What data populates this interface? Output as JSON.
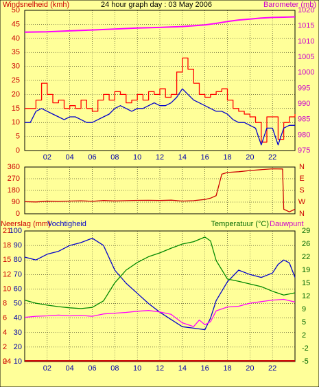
{
  "colors": {
    "background": "#ffff99",
    "frame": "#000000",
    "grid": "#000000",
    "label_red": "#cc0000",
    "label_magenta": "#cc00cc",
    "label_green": "#006600",
    "tick_blue": "#0000aa"
  },
  "chart_data": [
    {
      "type": "line",
      "title": "24 hour graph day : 03 May 2006",
      "ylabel_left": "Windsnelheid (kmh)",
      "ylabel_right": "Barometer (mb)",
      "x_ticks": [
        "02",
        "04",
        "06",
        "08",
        "10",
        "12",
        "14",
        "16",
        "18",
        "20",
        "22"
      ],
      "x_range_hours": [
        0,
        24
      ],
      "ylim_left": [
        0,
        50
      ],
      "y_ticks_left": [
        "0",
        "5",
        "10",
        "15",
        "20",
        "25",
        "30",
        "35",
        "40",
        "45",
        "50"
      ],
      "ylim_right": [
        975,
        1020
      ],
      "y_ticks_right": [
        "975",
        "980",
        "985",
        "990",
        "995",
        "1000",
        "1005",
        "1010",
        "1015",
        "1020"
      ],
      "grid": true,
      "series": [
        {
          "axis": "left",
          "style": "step",
          "color": "#ff0000",
          "x": [
            0,
            0.5,
            1,
            1.5,
            2,
            2.5,
            3,
            3.5,
            4,
            4.5,
            5,
            5.5,
            6,
            6.5,
            7,
            7.5,
            8,
            8.5,
            9,
            9.5,
            10,
            10.5,
            11,
            11.5,
            12,
            12.5,
            13,
            13.5,
            14,
            14.5,
            15,
            15.5,
            16,
            16.5,
            17,
            17.5,
            18,
            18.5,
            19,
            19.5,
            20,
            20.5,
            21,
            21.5,
            22,
            22.5,
            23,
            23.5,
            24
          ],
          "values": [
            15,
            15,
            18,
            24,
            20,
            17,
            18,
            15,
            16,
            15,
            18,
            15,
            14,
            18,
            20,
            18,
            21,
            20,
            17,
            18,
            20,
            18,
            21,
            20,
            22,
            19,
            20,
            28,
            33,
            29,
            24,
            20,
            19,
            20,
            21,
            22,
            18,
            15,
            14,
            13,
            12,
            10,
            3,
            12,
            12,
            4,
            10,
            12,
            13
          ]
        },
        {
          "axis": "left",
          "color": "#0000cc",
          "x": [
            0,
            0.5,
            1,
            1.5,
            2,
            2.5,
            3,
            3.5,
            4,
            4.5,
            5,
            5.5,
            6,
            6.5,
            7,
            7.5,
            8,
            8.5,
            9,
            9.5,
            10,
            10.5,
            11,
            11.5,
            12,
            12.5,
            13,
            13.5,
            14,
            14.5,
            15,
            15.5,
            16,
            16.5,
            17,
            17.5,
            18,
            18.5,
            19,
            19.5,
            20,
            20.5,
            21,
            21.5,
            22,
            22.5,
            23,
            23.5,
            24
          ],
          "values": [
            10,
            10,
            14,
            15,
            14,
            13,
            12,
            11,
            12,
            12,
            11,
            10,
            10,
            11,
            12,
            13,
            15,
            16,
            15,
            14,
            15,
            15,
            16,
            17,
            16,
            16,
            17,
            19,
            22,
            20,
            18,
            17,
            16,
            15,
            14,
            14,
            13,
            11,
            10,
            10,
            9,
            8,
            2,
            8,
            8,
            2,
            8,
            9,
            9
          ]
        },
        {
          "axis": "right",
          "color": "#ff00ff",
          "x": [
            0,
            2,
            4,
            6,
            8,
            10,
            12,
            14,
            16,
            17,
            18,
            19,
            20,
            21,
            22,
            23,
            24
          ],
          "values": [
            1013.0,
            1013.1,
            1013.4,
            1013.7,
            1014.0,
            1014.3,
            1014.5,
            1014.8,
            1015.3,
            1015.8,
            1016.4,
            1016.9,
            1017.2,
            1017.5,
            1017.7,
            1017.8,
            1017.9
          ]
        }
      ]
    },
    {
      "type": "line",
      "ylim_left": [
        0,
        360
      ],
      "y_ticks_left": [
        "0",
        "90",
        "180",
        "270",
        "360"
      ],
      "y_ticks_right": [
        "N",
        "W",
        "S",
        "E",
        "N"
      ],
      "x_range_hours": [
        0,
        24
      ],
      "grid": true,
      "series": [
        {
          "color": "#cc0000",
          "x": [
            0,
            1,
            2,
            3,
            4,
            5,
            6,
            7,
            8,
            9,
            10,
            11,
            12,
            13,
            14,
            15,
            16,
            16.5,
            17,
            17.5,
            18,
            19,
            20,
            21,
            22,
            22.9,
            23,
            23.5,
            24
          ],
          "values": [
            93,
            91,
            97,
            95,
            98,
            100,
            96,
            102,
            99,
            101,
            103,
            104,
            102,
            105,
            98,
            101,
            110,
            120,
            140,
            305,
            318,
            324,
            333,
            340,
            346,
            345,
            35,
            15,
            35
          ]
        }
      ]
    },
    {
      "type": "line",
      "ylabel_left": "Neerslag (mm)",
      "ylabel_left2": "Vochtigheid",
      "ylabel_right": "Temperatuur (°C)",
      "ylabel_right2": "Dauwpunt",
      "x_ticks": [
        "02",
        "04",
        "06",
        "08",
        "10",
        "12",
        "14",
        "16",
        "18",
        "20",
        "22"
      ],
      "x_range_hours": [
        0,
        24
      ],
      "ylim_humidity": [
        10,
        100
      ],
      "y_ticks_humidity": [
        "10",
        "20",
        "30",
        "40",
        "50",
        "60",
        "70",
        "80",
        "90",
        "100"
      ],
      "ylim_rain": [
        0,
        24
      ],
      "y_ticks_rain": [
        "0",
        "2",
        "4",
        "6",
        "8",
        "10",
        "12",
        "15",
        "18",
        "21",
        "24"
      ],
      "ylim_right": [
        -5,
        29
      ],
      "y_ticks_right": [
        "-5",
        "-2",
        "2",
        "5",
        "9",
        "12",
        "15",
        "19",
        "22",
        "26",
        "29"
      ],
      "grid": true,
      "series": [
        {
          "name": "Vochtigheid",
          "axis": "left",
          "color": "#0000cc",
          "x": [
            0,
            1,
            2,
            3,
            4,
            5,
            6,
            7,
            8,
            9,
            10,
            11,
            12,
            13,
            14,
            15,
            16,
            16.5,
            17,
            18,
            19,
            20,
            21,
            22,
            22.5,
            23,
            23.5,
            24
          ],
          "values": [
            82,
            80,
            84,
            86,
            90,
            92,
            95,
            90,
            73,
            64,
            57,
            50,
            44,
            39,
            34,
            33,
            32,
            40,
            52,
            65,
            73,
            70,
            68,
            71,
            77,
            80,
            78,
            68
          ]
        },
        {
          "name": "Temperatuur",
          "axis": "right",
          "color": "#008800",
          "x": [
            0,
            1,
            2,
            3,
            4,
            5,
            6,
            7,
            8,
            9,
            10,
            11,
            12,
            13,
            14,
            15,
            16,
            16.5,
            17,
            18,
            19,
            20,
            21,
            22,
            23,
            24
          ],
          "values": [
            11,
            10.2,
            9.7,
            9.3,
            9.0,
            8.8,
            9.1,
            10.8,
            15.5,
            18.8,
            20.8,
            22.3,
            23.3,
            24.5,
            25.6,
            26.2,
            27.4,
            26.4,
            21.3,
            16.5,
            15.9,
            15.2,
            14.5,
            13.3,
            12.3,
            12.9
          ]
        },
        {
          "name": "Dauwpunt",
          "axis": "right",
          "color": "#ff00ff",
          "x": [
            0,
            1,
            2,
            3,
            4,
            5,
            6,
            7,
            8,
            9,
            10,
            11,
            12,
            13,
            14,
            15,
            15.5,
            16,
            16.5,
            17,
            18,
            19,
            20,
            21,
            22,
            23,
            24
          ],
          "values": [
            6.5,
            6.8,
            6.9,
            7.1,
            6.9,
            7.0,
            6.8,
            7.4,
            7.6,
            7.8,
            8.1,
            8.3,
            7.9,
            7.3,
            5.1,
            4.1,
            5.8,
            4.6,
            5.4,
            8.2,
            9.2,
            9.4,
            10.2,
            10.6,
            11.0,
            11.2,
            10.5
          ]
        },
        {
          "name": "Neerslag",
          "axis": "rain",
          "color": "#cc0000",
          "x": [
            0,
            24
          ],
          "values": [
            0,
            0
          ]
        }
      ]
    }
  ]
}
